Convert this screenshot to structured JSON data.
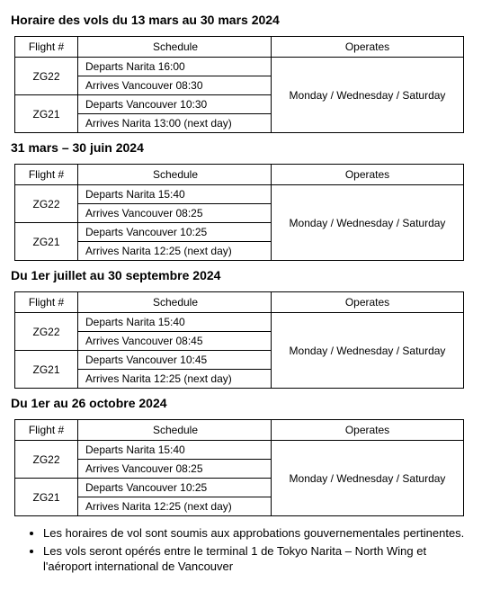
{
  "headers": {
    "flight": "Flight #",
    "schedule": "Schedule",
    "operates": "Operates"
  },
  "sections": [
    {
      "title": "Horaire des vols du 13 mars au 30 mars 2024",
      "rows": [
        {
          "flight": "ZG22",
          "line1": "Departs Narita 16:00",
          "line2": "Arrives Vancouver 08:30"
        },
        {
          "flight": "ZG21",
          "line1": "Departs Vancouver 10:30",
          "line2": "Arrives Narita 13:00 (next day)"
        }
      ],
      "operates": "Monday / Wednesday / Saturday"
    },
    {
      "title": "31 mars – 30 juin 2024",
      "rows": [
        {
          "flight": "ZG22",
          "line1": "Departs Narita 15:40",
          "line2": "Arrives Vancouver 08:25"
        },
        {
          "flight": "ZG21",
          "line1": "Departs Vancouver 10:25",
          "line2": "Arrives Narita 12:25 (next day)"
        }
      ],
      "operates": "Monday / Wednesday / Saturday"
    },
    {
      "title": "Du 1er juillet au 30 septembre 2024",
      "rows": [
        {
          "flight": "ZG22",
          "line1": "Departs Narita 15:40",
          "line2": "Arrives Vancouver 08:45"
        },
        {
          "flight": "ZG21",
          "line1": "Departs Vancouver 10:45",
          "line2": "Arrives Narita 12:25 (next day)"
        }
      ],
      "operates": "Monday / Wednesday / Saturday"
    },
    {
      "title": "Du 1er au 26 octobre 2024",
      "rows": [
        {
          "flight": "ZG22",
          "line1": "Departs Narita 15:40",
          "line2": "Arrives Vancouver 08:25"
        },
        {
          "flight": "ZG21",
          "line1": "Departs Vancouver 10:25",
          "line2": "Arrives Narita 12:25 (next day)"
        }
      ],
      "operates": "Monday / Wednesday / Saturday"
    }
  ],
  "notes": [
    "Les horaires de vol sont soumis aux approbations gouvernementales pertinentes.",
    "Les vols seront opérés entre le terminal 1 de Tokyo Narita – North Wing et l'aéroport international de Vancouver"
  ]
}
